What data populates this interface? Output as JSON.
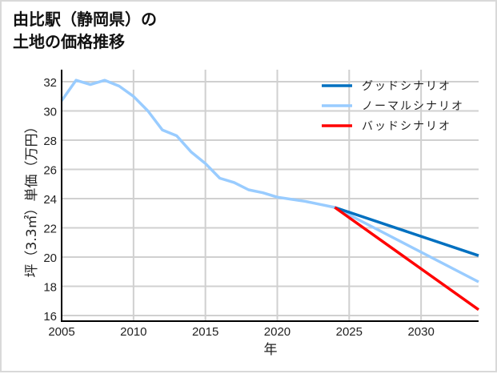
{
  "title": {
    "line1": "由比駅（静岡県）の",
    "line2": "土地の価格推移"
  },
  "chart_data": {
    "type": "line",
    "title": "由比駅（静岡県）の土地の価格推移",
    "xlabel": "年",
    "ylabel": "坪（3.3㎡）単価（万円）",
    "xlim": [
      2005,
      2034
    ],
    "ylim": [
      15.6,
      33.2
    ],
    "xticks": [
      2005,
      2010,
      2015,
      2020,
      2025,
      2030
    ],
    "yticks": [
      16,
      18,
      20,
      22,
      24,
      26,
      28,
      30,
      32
    ],
    "grid": true,
    "legend_position": "upper right",
    "series": [
      {
        "name": "グッドシナリオ",
        "color": "#0070c0",
        "x": [
          2024,
          2034
        ],
        "values": [
          23.4,
          20.1
        ]
      },
      {
        "name": "ノーマルシナリオ",
        "color": "#99ccff",
        "x": [
          2005,
          2006,
          2007,
          2008,
          2009,
          2010,
          2011,
          2012,
          2013,
          2014,
          2015,
          2016,
          2017,
          2018,
          2019,
          2020,
          2021,
          2022,
          2023,
          2024,
          2034
        ],
        "values": [
          30.7,
          32.1,
          31.8,
          32.1,
          31.7,
          31.0,
          30.0,
          28.7,
          28.3,
          27.2,
          26.4,
          25.4,
          25.1,
          24.6,
          24.4,
          24.1,
          23.95,
          23.8,
          23.6,
          23.4,
          18.3
        ]
      },
      {
        "name": "バッドシナリオ",
        "color": "#ff0000",
        "x": [
          2024,
          2034
        ],
        "values": [
          23.4,
          16.4
        ]
      }
    ]
  },
  "colors": {
    "grid": "#d0d0d0",
    "axis": "#000000",
    "border": "#d9d9d9"
  }
}
